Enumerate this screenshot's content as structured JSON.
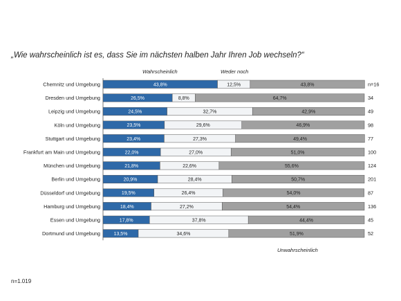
{
  "title": "„Wie wahrscheinlich ist es, dass Sie im nächsten halben Jahr Ihren Job wechseln?“",
  "footnote": "n=1.019",
  "chart_data": {
    "type": "bar",
    "orientation": "horizontal",
    "stacked": true,
    "percent_stacked": true,
    "categories": [
      "Chemnitz und Umgebung",
      "Dresden und Umgebung",
      "Leipzig und Umgebung",
      "Köln und Umgebung",
      "Stuttgart und Umgebung",
      "Frankfurt am Main und Umgebung",
      "München und Umgebung",
      "Berlin und Umgebung",
      "Düsseldorf und Umgebung",
      "Hamburg und Umgebung",
      "Essen und Umgebung",
      "Dortmund und Umgebung"
    ],
    "series": [
      {
        "name": "Wahrscheinlich",
        "color": "#2e69a8",
        "label_color": "#ffffff",
        "values": [
          43.8,
          26.5,
          24.5,
          23.5,
          23.4,
          22.0,
          21.8,
          20.9,
          19.5,
          18.4,
          17.8,
          13.5
        ],
        "labels": [
          "43,8%",
          "26,5%",
          "24,5%",
          "23,5%",
          "23,4%",
          "22,0%",
          "21,8%",
          "20,9%",
          "19,5%",
          "18,4%",
          "17,8%",
          "13,5%"
        ]
      },
      {
        "name": "Weder noch",
        "color": "#f2f4f6",
        "label_color": "#222222",
        "values": [
          12.5,
          8.8,
          32.7,
          29.6,
          27.3,
          27.0,
          22.6,
          28.4,
          26.4,
          27.2,
          37.8,
          34.6
        ],
        "labels": [
          "12,5%",
          "8,8%",
          "32,7%",
          "29,6%",
          "27,3%",
          "27,0%",
          "22,6%",
          "28,4%",
          "26,4%",
          "27,2%",
          "37,8%",
          "34,6%"
        ]
      },
      {
        "name": "Unwahrscheinlich",
        "color": "#a0a0a0",
        "label_color": "#222222",
        "values": [
          43.8,
          64.7,
          42.9,
          46.9,
          49.4,
          51.0,
          55.6,
          50.7,
          54.0,
          54.4,
          44.4,
          51.9
        ],
        "labels": [
          "43,8%",
          "64,7%",
          "42,9%",
          "46,9%",
          "49,4%",
          "51,0%",
          "55,6%",
          "50,7%",
          "54,0%",
          "54,4%",
          "44,4%",
          "51,9%"
        ]
      }
    ],
    "n_labels": [
      "n=16",
      "34",
      "49",
      "98",
      "77",
      "100",
      "124",
      "201",
      "87",
      "136",
      "45",
      "52"
    ],
    "xlim": [
      0,
      100
    ],
    "grid": false
  }
}
